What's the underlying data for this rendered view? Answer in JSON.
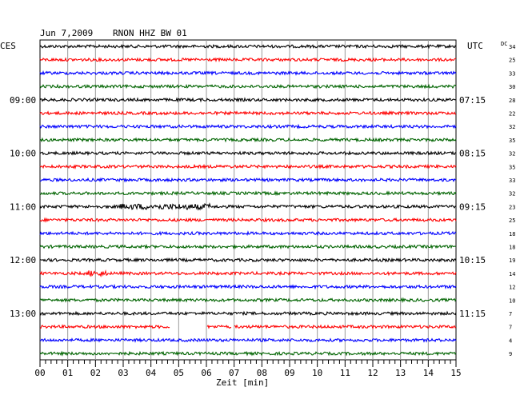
{
  "header": {
    "date": "Jun 7,2009",
    "station": "RNON HHZ BW 01",
    "left_zone": "CES",
    "right_zone": "UTC",
    "dc_label": "DC"
  },
  "chart_data": {
    "type": "line",
    "title": "Jun 7,2009   RNON HHZ BW 01",
    "xlabel": "Zeit [min]",
    "xlim": [
      0,
      15
    ],
    "x_ticks": [
      "00",
      "01",
      "02",
      "03",
      "04",
      "05",
      "06",
      "07",
      "08",
      "09",
      "10",
      "11",
      "12",
      "13",
      "14",
      "15"
    ],
    "minor_tick_step_min": 0.2,
    "grid": true,
    "row_interval_min": 15,
    "trace_colors": [
      "#000000",
      "#ff0000",
      "#0000ff",
      "#006400"
    ],
    "left_time_labels": [
      {
        "row": 4,
        "label": "09:00"
      },
      {
        "row": 8,
        "label": "10:00"
      },
      {
        "row": 12,
        "label": "11:00"
      },
      {
        "row": 16,
        "label": "12:00"
      },
      {
        "row": 20,
        "label": "13:00"
      }
    ],
    "right_time_labels": [
      {
        "row": 4,
        "label": "07:15"
      },
      {
        "row": 8,
        "label": "08:15"
      },
      {
        "row": 12,
        "label": "09:15"
      },
      {
        "row": 16,
        "label": "10:15"
      },
      {
        "row": 20,
        "label": "11:15"
      }
    ],
    "dc_offsets": [
      "34",
      "25",
      "33",
      "30",
      "28",
      "22",
      "32",
      "35",
      "32",
      "35",
      "33",
      "32",
      "23",
      "25",
      "18",
      "18",
      "19",
      "14",
      "12",
      "10",
      "7",
      "7",
      "4",
      "9"
    ],
    "events": [
      {
        "row": 12,
        "start_min": 2.8,
        "end_min": 6.2,
        "note": "higher amplitude segment"
      },
      {
        "row": 17,
        "start_min": 1.7,
        "end_min": 2.4,
        "note": "higher amplitude segment"
      }
    ],
    "gaps": [
      {
        "row": 21,
        "start_min": 4.7,
        "end_min": 6.0
      },
      {
        "row": 21,
        "start_min": 6.9,
        "end_min": 7.0
      }
    ]
  }
}
